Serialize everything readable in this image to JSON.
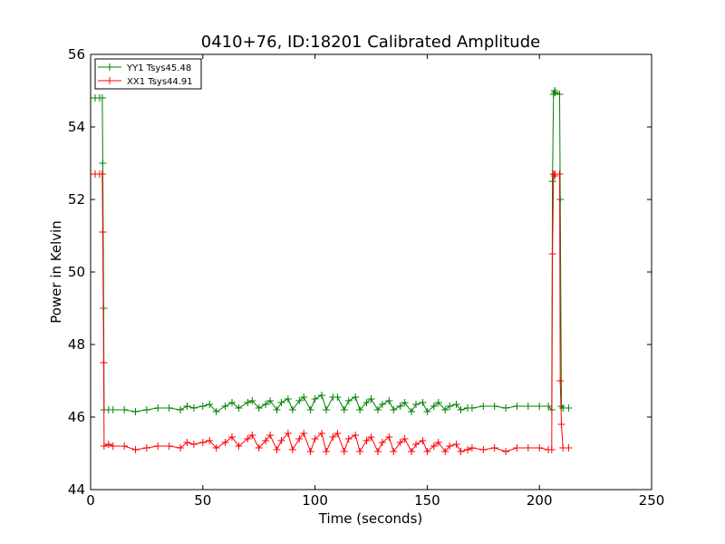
{
  "chart_data": {
    "type": "line",
    "title": "0410+76, ID:18201 Calibrated Amplitude",
    "xlabel": "Time (seconds)",
    "ylabel": "Power in Kelvin",
    "xlim": [
      0,
      250
    ],
    "ylim": [
      44,
      56
    ],
    "xticks": [
      0,
      50,
      100,
      150,
      200,
      250
    ],
    "yticks": [
      44,
      46,
      48,
      50,
      52,
      54,
      56
    ],
    "grid": false,
    "legend_position": "top-left",
    "marker": "+",
    "series": [
      {
        "name": "YY1 Tsys45.48",
        "color": "#008000",
        "x": [
          0,
          2,
          4,
          5.2,
          5.4,
          5.8,
          6,
          8,
          10,
          15,
          20,
          25,
          30,
          35,
          40,
          43,
          46,
          50,
          53,
          56,
          60,
          63,
          66,
          70,
          72,
          75,
          78,
          80,
          83,
          85,
          88,
          90,
          93,
          95,
          98,
          100,
          103,
          105,
          108,
          110,
          113,
          115,
          118,
          120,
          123,
          125,
          128,
          130,
          133,
          135,
          138,
          140,
          143,
          145,
          148,
          150,
          153,
          155,
          158,
          160,
          163,
          165,
          168,
          170,
          175,
          180,
          185,
          190,
          195,
          200,
          204,
          205.5,
          205.8,
          206.3,
          206.8,
          207,
          209,
          209.3,
          209.8,
          210.5,
          213
        ],
        "values": [
          54.8,
          54.8,
          54.8,
          54.8,
          53.0,
          49.0,
          46.2,
          46.2,
          46.2,
          46.2,
          46.15,
          46.2,
          46.25,
          46.25,
          46.2,
          46.3,
          46.25,
          46.3,
          46.35,
          46.15,
          46.3,
          46.4,
          46.25,
          46.4,
          46.45,
          46.25,
          46.35,
          46.45,
          46.2,
          46.4,
          46.5,
          46.2,
          46.45,
          46.55,
          46.2,
          46.5,
          46.6,
          46.2,
          46.55,
          46.55,
          46.2,
          46.45,
          46.55,
          46.2,
          46.4,
          46.5,
          46.2,
          46.35,
          46.45,
          46.2,
          46.3,
          46.4,
          46.15,
          46.35,
          46.4,
          46.15,
          46.3,
          46.4,
          46.2,
          46.3,
          46.35,
          46.2,
          46.25,
          46.25,
          46.3,
          46.3,
          46.25,
          46.3,
          46.3,
          46.3,
          46.3,
          46.2,
          52.5,
          54.9,
          55.0,
          54.95,
          54.9,
          52.0,
          46.3,
          46.25,
          46.25
        ]
      },
      {
        "name": "XX1 Tsys44.91",
        "color": "#ff0000",
        "x": [
          0,
          2,
          4,
          5.2,
          5.4,
          5.8,
          6,
          8,
          10,
          15,
          20,
          25,
          30,
          35,
          40,
          43,
          46,
          50,
          53,
          56,
          60,
          63,
          66,
          70,
          72,
          75,
          78,
          80,
          83,
          85,
          88,
          90,
          93,
          95,
          98,
          100,
          103,
          105,
          108,
          110,
          113,
          115,
          118,
          120,
          123,
          125,
          128,
          130,
          133,
          135,
          138,
          140,
          143,
          145,
          148,
          150,
          153,
          155,
          158,
          160,
          163,
          165,
          168,
          170,
          175,
          180,
          185,
          190,
          195,
          200,
          204,
          205.5,
          205.8,
          206.3,
          206.8,
          207,
          209,
          209.3,
          209.8,
          210.5,
          213
        ],
        "values": [
          52.7,
          52.7,
          52.7,
          52.7,
          51.1,
          47.5,
          45.2,
          45.25,
          45.2,
          45.2,
          45.1,
          45.15,
          45.2,
          45.2,
          45.15,
          45.3,
          45.25,
          45.3,
          45.35,
          45.15,
          45.3,
          45.45,
          45.2,
          45.4,
          45.5,
          45.15,
          45.35,
          45.5,
          45.1,
          45.35,
          45.55,
          45.1,
          45.4,
          45.55,
          45.05,
          45.4,
          45.55,
          45.05,
          45.45,
          45.55,
          45.05,
          45.4,
          45.5,
          45.05,
          45.35,
          45.45,
          45.05,
          45.3,
          45.45,
          45.05,
          45.3,
          45.4,
          45.05,
          45.25,
          45.35,
          45.05,
          45.2,
          45.3,
          45.05,
          45.2,
          45.25,
          45.05,
          45.1,
          45.15,
          45.1,
          45.15,
          45.05,
          45.15,
          45.15,
          45.15,
          45.1,
          45.1,
          50.5,
          52.7,
          52.65,
          52.7,
          52.7,
          47.0,
          45.8,
          45.15,
          45.15
        ]
      }
    ]
  }
}
